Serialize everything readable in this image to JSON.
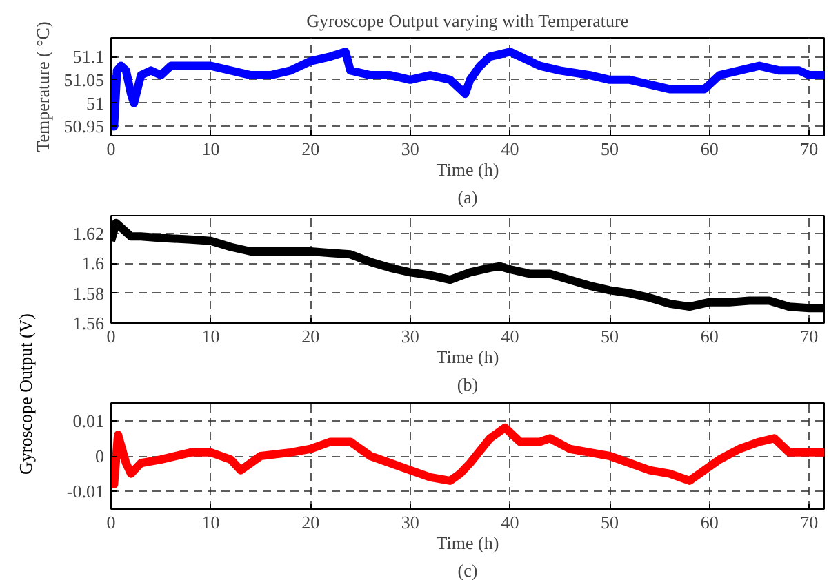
{
  "chart_data": [
    {
      "type": "line",
      "title": "Gyroscope Output varying with Temperature",
      "ylabel": "Temperature ( °C)",
      "xlabel": "Time (h)",
      "annotations": [
        "(a)"
      ],
      "x": [
        0,
        0.3,
        0.6,
        1,
        1.5,
        2,
        2.3,
        3,
        4,
        5,
        6,
        8,
        10,
        12,
        14,
        16,
        18,
        20,
        22,
        23.5,
        24,
        26,
        28,
        30,
        32,
        34,
        35.5,
        36,
        37,
        38,
        40,
        41,
        43,
        45,
        48,
        50,
        52,
        54,
        56,
        58,
        59.5,
        61,
        63,
        65,
        67,
        69,
        70,
        71.5
      ],
      "series": [
        {
          "color": "#0000ff",
          "values": [
            51.06,
            50.95,
            51.07,
            51.08,
            51.07,
            51.02,
            51.0,
            51.06,
            51.07,
            51.06,
            51.08,
            51.08,
            51.08,
            51.07,
            51.06,
            51.06,
            51.07,
            51.09,
            51.1,
            51.11,
            51.07,
            51.06,
            51.06,
            51.05,
            51.06,
            51.05,
            51.02,
            51.05,
            51.08,
            51.1,
            51.11,
            51.1,
            51.08,
            51.07,
            51.06,
            51.05,
            51.05,
            51.04,
            51.03,
            51.03,
            51.03,
            51.06,
            51.07,
            51.08,
            51.07,
            51.07,
            51.06,
            51.06
          ]
        }
      ],
      "xlim": [
        0,
        71.5
      ],
      "ylim": [
        50.93,
        51.14
      ],
      "xticks": [
        0,
        10,
        20,
        30,
        40,
        50,
        60,
        70
      ],
      "yticks": [
        50.95,
        51,
        51.05,
        51.1
      ],
      "grid": true,
      "line_style": "solid",
      "marker": "none"
    },
    {
      "type": "line",
      "ylabel": "Gyroscope Output (V)",
      "xlabel": "Time (h)",
      "annotations": [
        "(b)"
      ],
      "x": [
        0,
        0.5,
        1,
        2,
        3,
        5,
        8,
        10,
        12,
        14,
        16,
        18,
        20,
        22,
        24,
        26,
        28,
        30,
        32,
        34,
        36,
        38,
        39,
        40,
        42,
        44,
        46,
        48,
        50,
        52,
        54,
        56,
        58,
        60,
        62,
        64,
        66,
        68,
        70,
        71.5
      ],
      "series": [
        {
          "color": "#000000",
          "values": [
            1.615,
            1.627,
            1.624,
            1.618,
            1.618,
            1.617,
            1.616,
            1.615,
            1.611,
            1.608,
            1.608,
            1.608,
            1.608,
            1.607,
            1.606,
            1.601,
            1.597,
            1.594,
            1.592,
            1.589,
            1.594,
            1.597,
            1.598,
            1.596,
            1.593,
            1.593,
            1.589,
            1.585,
            1.582,
            1.58,
            1.577,
            1.573,
            1.571,
            1.574,
            1.574,
            1.575,
            1.575,
            1.571,
            1.57,
            1.57
          ]
        }
      ],
      "xlim": [
        0,
        71.5
      ],
      "ylim": [
        1.56,
        1.632
      ],
      "xticks": [
        0,
        10,
        20,
        30,
        40,
        50,
        60,
        70
      ],
      "yticks": [
        1.56,
        1.58,
        1.6,
        1.62
      ],
      "grid": true,
      "line_style": "solid",
      "marker": "none"
    },
    {
      "type": "line",
      "xlabel": "Time (h)",
      "annotations": [
        "(c)"
      ],
      "x": [
        0,
        0.3,
        0.7,
        1,
        1.5,
        2,
        3,
        5,
        8,
        10,
        12,
        13,
        15,
        18,
        20,
        22,
        24,
        26,
        28,
        30,
        32,
        34,
        35,
        36,
        38,
        39.5,
        41,
        43,
        44,
        46,
        48,
        50,
        52,
        54,
        56,
        58,
        59,
        61,
        63,
        65,
        66.5,
        68,
        70,
        71.5
      ],
      "series": [
        {
          "color": "#ff0000",
          "values": [
            0,
            -0.008,
            0.006,
            0.003,
            -0.002,
            -0.005,
            -0.002,
            -0.001,
            0.001,
            0.001,
            -0.001,
            -0.004,
            0,
            0.001,
            0.002,
            0.004,
            0.004,
            0,
            -0.002,
            -0.004,
            -0.006,
            -0.007,
            -0.005,
            -0.002,
            0.005,
            0.008,
            0.004,
            0.004,
            0.005,
            0.002,
            0.001,
            0,
            -0.002,
            -0.004,
            -0.005,
            -0.007,
            -0.005,
            -0.001,
            0.002,
            0.004,
            0.005,
            0.001,
            0.001,
            0.001
          ]
        }
      ],
      "xlim": [
        0,
        71.5
      ],
      "ylim": [
        -0.015,
        0.015
      ],
      "xticks": [
        0,
        10,
        20,
        30,
        40,
        50,
        60,
        70
      ],
      "yticks": [
        -0.01,
        0,
        0.01
      ],
      "grid": true,
      "line_style": "solid",
      "marker": "none"
    }
  ]
}
